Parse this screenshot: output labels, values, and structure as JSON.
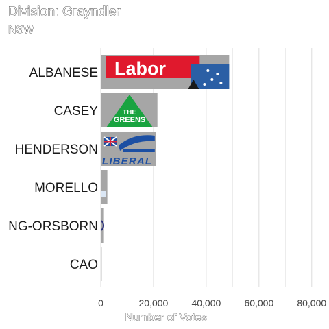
{
  "page": {
    "title": "Division: Grayndler",
    "subtitle": "NSW"
  },
  "chart_data": {
    "type": "bar",
    "orientation": "horizontal",
    "categories": [
      "ALBANESE",
      "CASEY",
      "HENDERSON",
      "MORELLO",
      "NG-ORSBORN",
      "CAO"
    ],
    "values": [
      48700,
      21500,
      21000,
      2500,
      1200,
      350
    ],
    "party_logos": [
      "Labor",
      "THE GREENS",
      "LIBERAL",
      "",
      "",
      ""
    ],
    "xlabel": "Number of Votes",
    "ylabel": "",
    "xlim": [
      0,
      85000
    ],
    "xticks": [
      0,
      20000,
      40000,
      60000,
      80000
    ],
    "xtick_labels": [
      "0",
      "20,000",
      "40,000",
      "60,000",
      "80,000"
    ],
    "grid": true,
    "colors": {
      "bar": "#a6a6a6",
      "labor_red": "#e0192d",
      "labor_blue": "#2b5fa5",
      "greens_green": "#19a340",
      "liberal_blue": "#1c4fa3",
      "grid": "#e0e0e0"
    }
  }
}
